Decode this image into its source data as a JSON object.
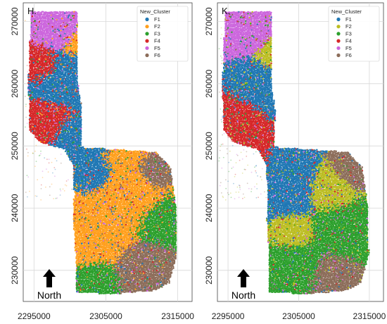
{
  "chart_data": [
    {
      "type": "scatter",
      "panel_label": "H.",
      "legend_title": "New_Cluster",
      "legend_position": "top-right",
      "grid": true,
      "x_ticks": [
        "2295000",
        "2305000",
        "2315000"
      ],
      "y_ticks": [
        "270000",
        "260000",
        "250000",
        "240000",
        "230000"
      ],
      "xlim": [
        2293500,
        2317000
      ],
      "ylim": [
        225000,
        273000
      ],
      "north_label": "North",
      "series": [
        {
          "name": "F1",
          "color": "#1f77b4"
        },
        {
          "name": "F2",
          "color": "#ff9f1c"
        },
        {
          "name": "F3",
          "color": "#2ca02c"
        },
        {
          "name": "F4",
          "color": "#d62728"
        },
        {
          "name": "F5",
          "color": "#cc66dd"
        },
        {
          "name": "F6",
          "color": "#8c6d5a"
        }
      ],
      "zones": [
        {
          "cx": 2299500,
          "cy": 261000,
          "r": 3500,
          "cluster": "F1"
        },
        {
          "cx": 2300000,
          "cy": 251000,
          "r": 3000,
          "cluster": "F1"
        },
        {
          "cx": 2296700,
          "cy": 253000,
          "r": 3000,
          "cluster": "F4"
        },
        {
          "cx": 2296300,
          "cy": 263000,
          "r": 2200,
          "cluster": "F4"
        },
        {
          "cx": 2298500,
          "cy": 268500,
          "r": 2500,
          "cluster": "F5"
        },
        {
          "cx": 2297300,
          "cy": 247500,
          "r": 2000,
          "cluster": "F4"
        },
        {
          "cx": 2301500,
          "cy": 266500,
          "r": 2000,
          "cluster": "F2"
        },
        {
          "cx": 2308000,
          "cy": 242000,
          "r": 4500,
          "cluster": "F2"
        },
        {
          "cx": 2303000,
          "cy": 235000,
          "r": 4000,
          "cluster": "F2"
        },
        {
          "cx": 2313000,
          "cy": 238000,
          "r": 3000,
          "cluster": "F3"
        },
        {
          "cx": 2310500,
          "cy": 230000,
          "r": 3200,
          "cluster": "F6"
        },
        {
          "cx": 2303500,
          "cy": 228500,
          "r": 2600,
          "cluster": "F3"
        },
        {
          "cx": 2303500,
          "cy": 245000,
          "r": 2200,
          "cluster": "F1"
        },
        {
          "cx": 2312000,
          "cy": 245500,
          "r": 2200,
          "cluster": "F6"
        }
      ]
    },
    {
      "type": "scatter",
      "panel_label": "K.",
      "legend_title": "New_Cluster",
      "legend_position": "top-right",
      "grid": true,
      "x_ticks": [
        "2295000",
        "2305000",
        "2315000"
      ],
      "y_ticks": [
        "270000",
        "260000",
        "250000",
        "240000",
        "230000"
      ],
      "xlim": [
        2293500,
        2317000
      ],
      "ylim": [
        225000,
        273000
      ],
      "north_label": "North",
      "series": [
        {
          "name": "F1",
          "color": "#1f77b4"
        },
        {
          "name": "F2",
          "color": "#bcbd22"
        },
        {
          "name": "F3",
          "color": "#2ca02c"
        },
        {
          "name": "F4",
          "color": "#d62728"
        },
        {
          "name": "F5",
          "color": "#cc66dd"
        },
        {
          "name": "F6",
          "color": "#8c6d5a"
        }
      ],
      "zones": [
        {
          "cx": 2300500,
          "cy": 259500,
          "r": 3800,
          "cluster": "F1"
        },
        {
          "cx": 2303500,
          "cy": 243500,
          "r": 3500,
          "cluster": "F1"
        },
        {
          "cx": 2296500,
          "cy": 254000,
          "r": 3200,
          "cluster": "F4"
        },
        {
          "cx": 2297500,
          "cy": 268000,
          "r": 2800,
          "cluster": "F5"
        },
        {
          "cx": 2301500,
          "cy": 264500,
          "r": 2200,
          "cluster": "F2"
        },
        {
          "cx": 2309500,
          "cy": 243000,
          "r": 2600,
          "cluster": "F2"
        },
        {
          "cx": 2304500,
          "cy": 236000,
          "r": 2200,
          "cluster": "F2"
        },
        {
          "cx": 2311500,
          "cy": 236000,
          "r": 3600,
          "cluster": "F3"
        },
        {
          "cx": 2305000,
          "cy": 231000,
          "r": 3000,
          "cluster": "F3"
        },
        {
          "cx": 2310000,
          "cy": 229500,
          "r": 2800,
          "cluster": "F6"
        },
        {
          "cx": 2312500,
          "cy": 246000,
          "r": 2200,
          "cluster": "F6"
        },
        {
          "cx": 2298000,
          "cy": 248000,
          "r": 1800,
          "cluster": "F4"
        }
      ]
    }
  ]
}
